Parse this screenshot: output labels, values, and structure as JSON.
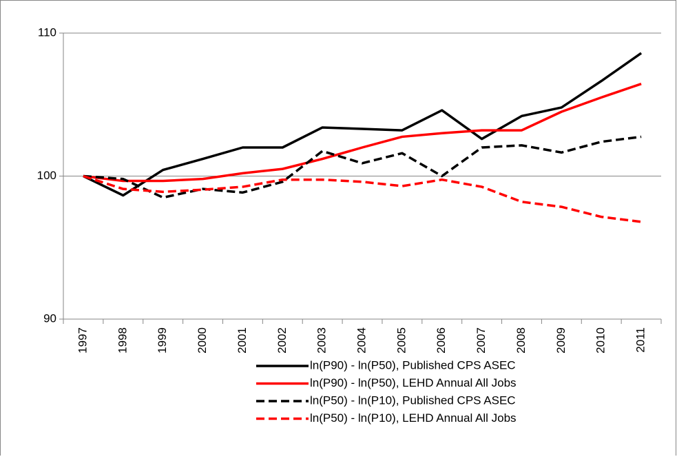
{
  "chart_data": {
    "type": "line",
    "categories": [
      "1997",
      "1998",
      "1999",
      "2000",
      "2001",
      "2002",
      "2003",
      "2004",
      "2005",
      "2006",
      "2007",
      "2008",
      "2009",
      "2010",
      "2011"
    ],
    "series": [
      {
        "name": "ln(P90) - ln(P50), Published CPS ASEC",
        "color": "#000000",
        "line_style": "solid",
        "values": [
          100,
          98.65,
          100.43,
          101.2,
          102.0,
          102.0,
          103.4,
          103.3,
          103.2,
          104.6,
          102.6,
          104.2,
          104.8,
          106.65,
          108.6
        ]
      },
      {
        "name": "ln(P90) - ln(P50), LEHD Annual All Jobs",
        "color": "#ff0000",
        "line_style": "solid",
        "values": [
          100,
          99.66,
          99.66,
          99.8,
          100.2,
          100.5,
          101.2,
          102.0,
          102.75,
          103.0,
          103.2,
          103.2,
          104.5,
          105.5,
          106.45
        ]
      },
      {
        "name": "ln(P50) - ln(P10), Published CPS ASEC",
        "color": "#000000",
        "line_style": "dashed",
        "values": [
          100,
          99.8,
          98.5,
          99.1,
          98.85,
          99.6,
          101.75,
          100.9,
          101.6,
          100.0,
          102.0,
          102.15,
          101.65,
          102.4,
          102.75
        ]
      },
      {
        "name": "ln(P50) - ln(P10), LEHD Annual All Jobs",
        "color": "#ff0000",
        "line_style": "dashed",
        "values": [
          100,
          99.1,
          98.9,
          99.05,
          99.25,
          99.75,
          99.75,
          99.6,
          99.3,
          99.75,
          99.25,
          98.2,
          97.85,
          97.15,
          96.8
        ]
      }
    ],
    "ylim": [
      90,
      110
    ],
    "yticks": [
      90,
      100,
      110
    ],
    "grid": true,
    "legend": "bottom"
  }
}
